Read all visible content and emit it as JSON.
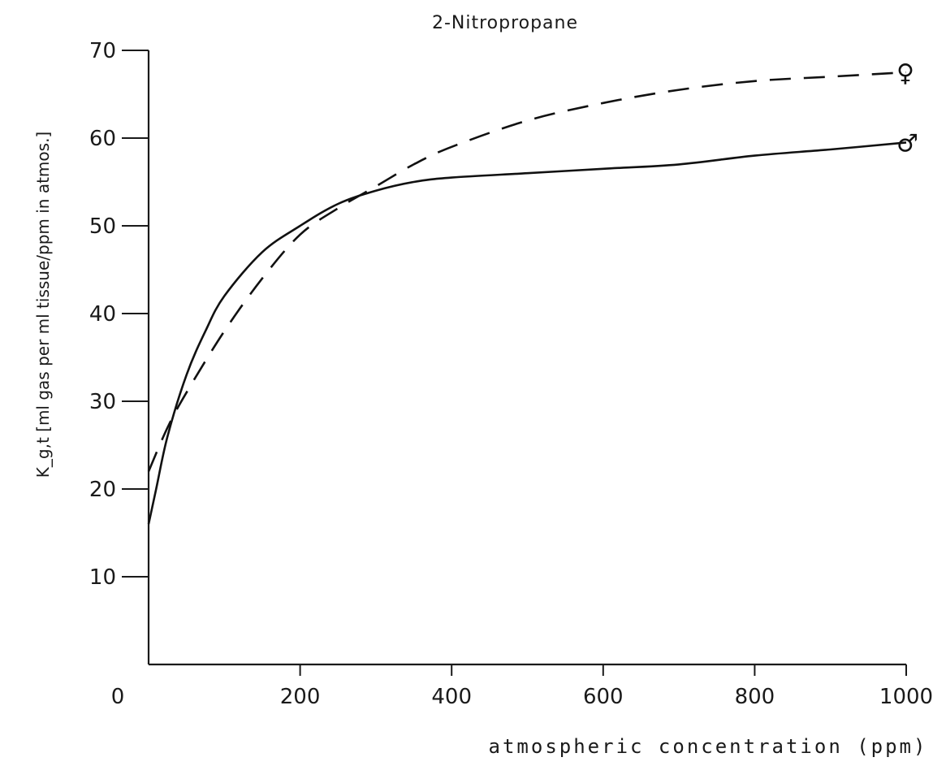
{
  "chart_data": {
    "type": "line",
    "title": "2-Nitropropane",
    "xlabel": "atmospheric concentration (ppm)",
    "ylabel": "K_g,t [ml gas per ml tissue/ppm in atmos.]",
    "xlim": [
      0,
      1000
    ],
    "ylim": [
      0,
      70
    ],
    "x_ticks": [
      "0",
      "200",
      "400",
      "600",
      "800",
      "1000"
    ],
    "y_ticks": [
      "10",
      "20",
      "30",
      "40",
      "50",
      "60",
      "70"
    ],
    "grid": false,
    "series": [
      {
        "name": "♂",
        "style": "solid",
        "x": [
          0,
          10,
          25,
          50,
          75,
          100,
          150,
          200,
          250,
          300,
          350,
          400,
          500,
          600,
          700,
          800,
          900,
          1000
        ],
        "y": [
          16,
          20,
          26,
          33,
          38,
          42,
          47,
          50,
          52.5,
          54,
          55,
          55.5,
          56,
          56.5,
          57,
          58,
          58.7,
          59.5
        ]
      },
      {
        "name": "♀",
        "style": "dashed",
        "x": [
          0,
          25,
          50,
          100,
          150,
          200,
          250,
          300,
          350,
          400,
          500,
          600,
          700,
          800,
          900,
          1000
        ],
        "y": [
          22,
          27,
          31,
          38,
          44,
          49,
          52,
          54.5,
          57,
          59,
          62,
          64,
          65.5,
          66.5,
          67,
          67.5
        ]
      }
    ]
  }
}
